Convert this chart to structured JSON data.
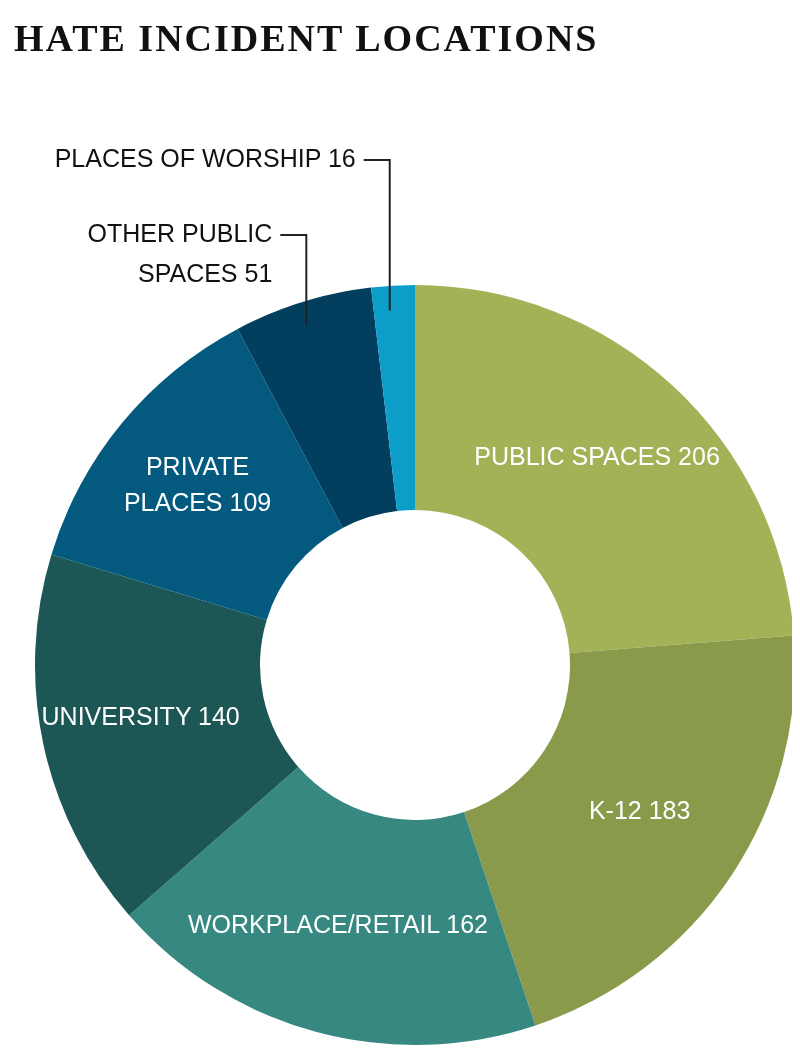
{
  "chart_data": {
    "type": "donut",
    "title": "HATE INCIDENT LOCATIONS",
    "categories": [
      "PUBLIC SPACES",
      "K-12",
      "WORKPLACE/RETAIL",
      "UNIVERSITY",
      "PRIVATE PLACES",
      "OTHER PUBLIC SPACES",
      "PLACES OF WORSHIP"
    ],
    "values": [
      206,
      183,
      162,
      140,
      109,
      51,
      16
    ],
    "colors": [
      "#a3b157",
      "#8a9a4b",
      "#388882",
      "#1c5755",
      "#035a7e",
      "#023f5f",
      "#0c9ec9"
    ],
    "data_labels": true
  }
}
